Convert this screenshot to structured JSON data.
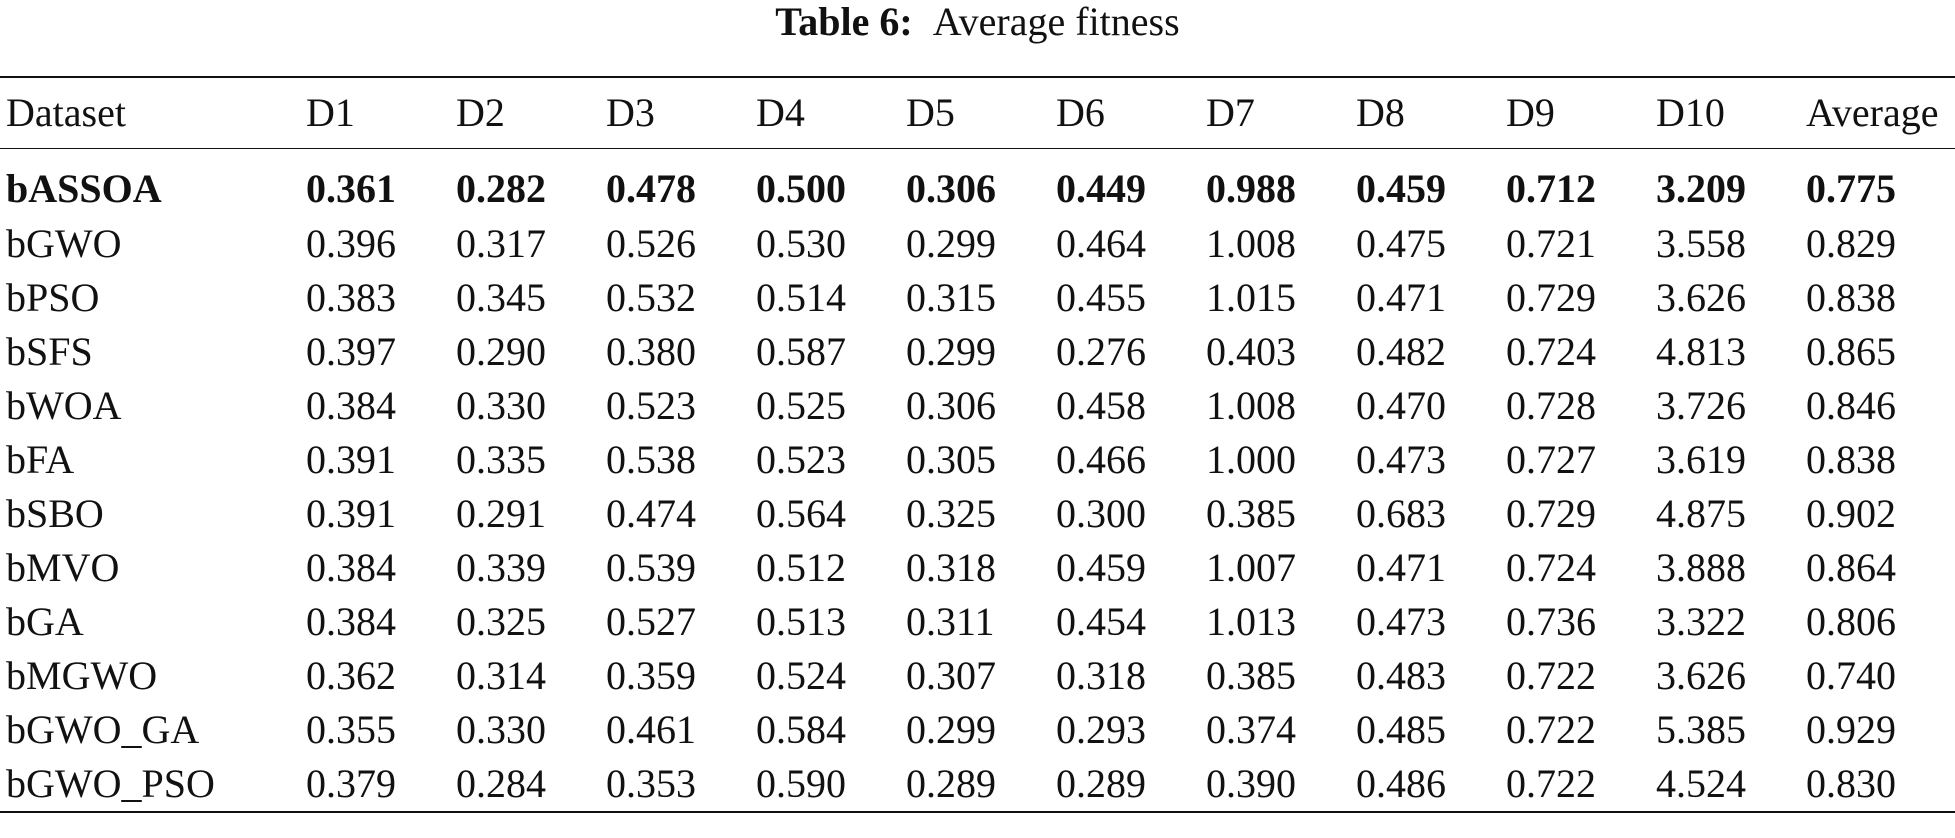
{
  "caption": {
    "label": "Table 6:",
    "text": "Average fitness"
  },
  "table": {
    "headers": [
      "Dataset",
      "D1",
      "D2",
      "D3",
      "D4",
      "D5",
      "D6",
      "D7",
      "D8",
      "D9",
      "D10",
      "Average"
    ],
    "rows": [
      {
        "method": "bASSOA",
        "bold": true,
        "values": [
          "0.361",
          "0.282",
          "0.478",
          "0.500",
          "0.306",
          "0.449",
          "0.988",
          "0.459",
          "0.712",
          "3.209",
          "0.775"
        ]
      },
      {
        "method": "bGWO",
        "bold": false,
        "values": [
          "0.396",
          "0.317",
          "0.526",
          "0.530",
          "0.299",
          "0.464",
          "1.008",
          "0.475",
          "0.721",
          "3.558",
          "0.829"
        ]
      },
      {
        "method": "bPSO",
        "bold": false,
        "values": [
          "0.383",
          "0.345",
          "0.532",
          "0.514",
          "0.315",
          "0.455",
          "1.015",
          "0.471",
          "0.729",
          "3.626",
          "0.838"
        ]
      },
      {
        "method": "bSFS",
        "bold": false,
        "values": [
          "0.397",
          "0.290",
          "0.380",
          "0.587",
          "0.299",
          "0.276",
          "0.403",
          "0.482",
          "0.724",
          "4.813",
          "0.865"
        ]
      },
      {
        "method": "bWOA",
        "bold": false,
        "values": [
          "0.384",
          "0.330",
          "0.523",
          "0.525",
          "0.306",
          "0.458",
          "1.008",
          "0.470",
          "0.728",
          "3.726",
          "0.846"
        ]
      },
      {
        "method": "bFA",
        "bold": false,
        "values": [
          "0.391",
          "0.335",
          "0.538",
          "0.523",
          "0.305",
          "0.466",
          "1.000",
          "0.473",
          "0.727",
          "3.619",
          "0.838"
        ]
      },
      {
        "method": "bSBO",
        "bold": false,
        "values": [
          "0.391",
          "0.291",
          "0.474",
          "0.564",
          "0.325",
          "0.300",
          "0.385",
          "0.683",
          "0.729",
          "4.875",
          "0.902"
        ]
      },
      {
        "method": "bMVO",
        "bold": false,
        "values": [
          "0.384",
          "0.339",
          "0.539",
          "0.512",
          "0.318",
          "0.459",
          "1.007",
          "0.471",
          "0.724",
          "3.888",
          "0.864"
        ]
      },
      {
        "method": "bGA",
        "bold": false,
        "values": [
          "0.384",
          "0.325",
          "0.527",
          "0.513",
          "0.311",
          "0.454",
          "1.013",
          "0.473",
          "0.736",
          "3.322",
          "0.806"
        ]
      },
      {
        "method": "bMGWO",
        "bold": false,
        "values": [
          "0.362",
          "0.314",
          "0.359",
          "0.524",
          "0.307",
          "0.318",
          "0.385",
          "0.483",
          "0.722",
          "3.626",
          "0.740"
        ]
      },
      {
        "method": "bGWO_GA",
        "bold": false,
        "values": [
          "0.355",
          "0.330",
          "0.461",
          "0.584",
          "0.299",
          "0.293",
          "0.374",
          "0.485",
          "0.722",
          "5.385",
          "0.929"
        ]
      },
      {
        "method": "bGWO_PSO",
        "bold": false,
        "values": [
          "0.379",
          "0.284",
          "0.353",
          "0.590",
          "0.289",
          "0.289",
          "0.390",
          "0.486",
          "0.722",
          "4.524",
          "0.830"
        ]
      }
    ]
  }
}
